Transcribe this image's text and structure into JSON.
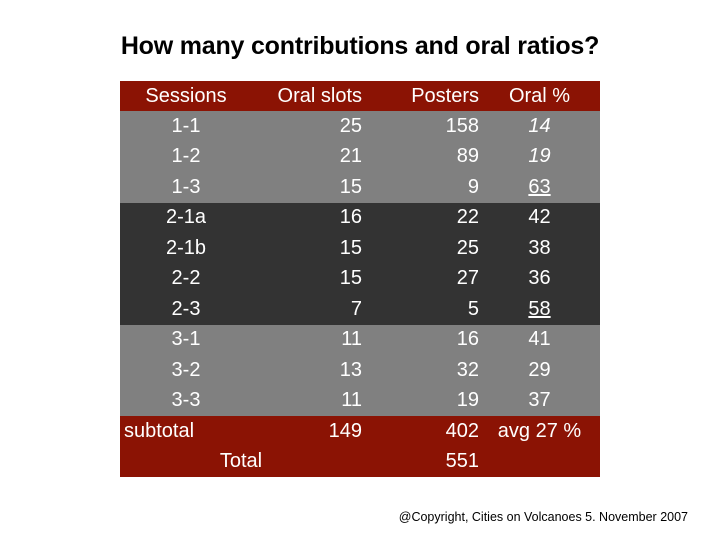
{
  "title": "How many contributions and oral ratios?",
  "colors": {
    "header_red": "#8b1304",
    "light_gray": "#808080",
    "dark_gray": "#333333"
  },
  "table": {
    "headers": [
      "Sessions",
      "Oral slots",
      "Posters",
      "Oral %"
    ],
    "rows": [
      {
        "session": "1-1",
        "oral": "25",
        "posters": "158",
        "pct": "14"
      },
      {
        "session": "1-2",
        "oral": "21",
        "posters": "89",
        "pct": "19"
      },
      {
        "session": "1-3",
        "oral": "15",
        "posters": "9",
        "pct": "63"
      },
      {
        "session": "2-1a",
        "oral": "16",
        "posters": "22",
        "pct": "42"
      },
      {
        "session": "2-1b",
        "oral": "15",
        "posters": "25",
        "pct": "38"
      },
      {
        "session": "2-2",
        "oral": "15",
        "posters": "27",
        "pct": "36"
      },
      {
        "session": "2-3",
        "oral": "7",
        "posters": "5",
        "pct": "58"
      },
      {
        "session": "3-1",
        "oral": "11",
        "posters": "16",
        "pct": "41"
      },
      {
        "session": "3-2",
        "oral": "13",
        "posters": "32",
        "pct": "29"
      },
      {
        "session": "3-3",
        "oral": "11",
        "posters": "19",
        "pct": "37"
      }
    ],
    "subtotal": {
      "label": "subtotal",
      "oral": "149",
      "posters": "402",
      "pct": "avg 27 %"
    },
    "total": {
      "label": "Total",
      "posters": "551"
    }
  },
  "copyright": "@Copyright, Cities on Volcanoes 5. November 2007"
}
